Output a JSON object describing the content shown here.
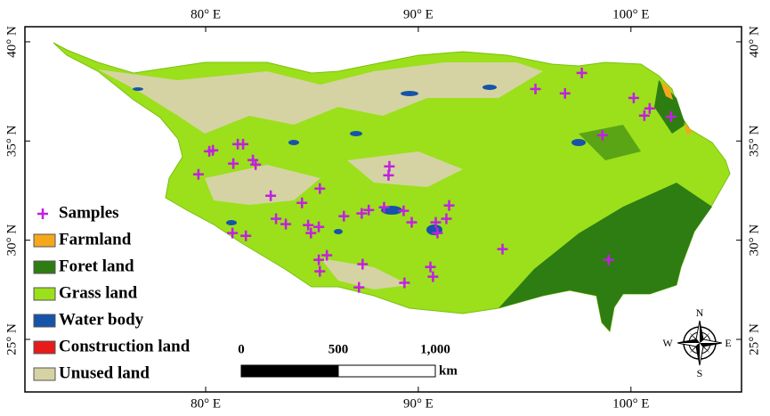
{
  "map": {
    "lon_range": [
      71.5,
      105.2
    ],
    "lat_range": [
      22.35,
      40.76
    ],
    "lon_ticks": [
      {
        "value": 80,
        "label": "80° E"
      },
      {
        "value": 90,
        "label": "90° E"
      },
      {
        "value": 100,
        "label": "100° E"
      }
    ],
    "lat_ticks": [
      {
        "value": 40,
        "label": "40° N"
      },
      {
        "value": 35,
        "label": "35° N"
      },
      {
        "value": 30,
        "label": "30° N"
      },
      {
        "value": 25,
        "label": "25° N"
      }
    ],
    "samples": {
      "name": "Samples",
      "color": "#c21fe0",
      "points": [
        [
          79.66,
          33.32
        ],
        [
          80.17,
          34.48
        ],
        [
          80.34,
          34.53
        ],
        [
          81.3,
          33.86
        ],
        [
          81.51,
          34.84
        ],
        [
          81.76,
          34.84
        ],
        [
          82.22,
          34.04
        ],
        [
          82.35,
          33.81
        ],
        [
          83.06,
          32.24
        ],
        [
          83.31,
          31.08
        ],
        [
          83.77,
          30.81
        ],
        [
          84.53,
          31.88
        ],
        [
          84.82,
          30.76
        ],
        [
          84.95,
          30.36
        ],
        [
          85.32,
          30.67
        ],
        [
          85.37,
          32.6
        ],
        [
          86.5,
          31.21
        ],
        [
          87.34,
          31.35
        ],
        [
          87.67,
          31.52
        ],
        [
          88.39,
          31.66
        ],
        [
          88.64,
          33.72
        ],
        [
          88.6,
          33.27
        ],
        [
          89.31,
          31.48
        ],
        [
          89.69,
          30.9
        ],
        [
          90.82,
          30.9
        ],
        [
          90.9,
          30.36
        ],
        [
          91.32,
          31.08
        ],
        [
          91.45,
          31.75
        ],
        [
          90.57,
          28.65
        ],
        [
          90.69,
          28.16
        ],
        [
          89.35,
          27.85
        ],
        [
          87.38,
          28.79
        ],
        [
          87.21,
          27.62
        ],
        [
          85.37,
          28.43
        ],
        [
          85.32,
          29.01
        ],
        [
          85.7,
          29.24
        ],
        [
          81.26,
          30.36
        ],
        [
          81.89,
          30.22
        ],
        [
          93.96,
          29.55
        ],
        [
          95.51,
          37.62
        ],
        [
          96.9,
          37.4
        ],
        [
          97.69,
          38.43
        ],
        [
          98.66,
          35.29
        ],
        [
          100.13,
          37.17
        ],
        [
          100.63,
          36.28
        ],
        [
          100.88,
          36.64
        ],
        [
          101.89,
          36.23
        ],
        [
          98.95,
          29.01
        ]
      ]
    },
    "legend": [
      {
        "name": "Farmland",
        "color": "#f5a81c"
      },
      {
        "name": "Foret land",
        "color": "#2e7d12"
      },
      {
        "name": "Grass land",
        "color": "#9be01a"
      },
      {
        "name": "Water body",
        "color": "#1554a8"
      },
      {
        "name": "Construction land",
        "color": "#e81a1a"
      },
      {
        "name": "Unused land",
        "color": "#d5d3a4"
      }
    ],
    "scale_bar": {
      "ticks": [
        0,
        500,
        {
          "value": 1000,
          "label": "1,000"
        }
      ],
      "unit": "km"
    },
    "compass": {
      "n": "N",
      "s": "S",
      "e": "E",
      "w": "W"
    }
  }
}
